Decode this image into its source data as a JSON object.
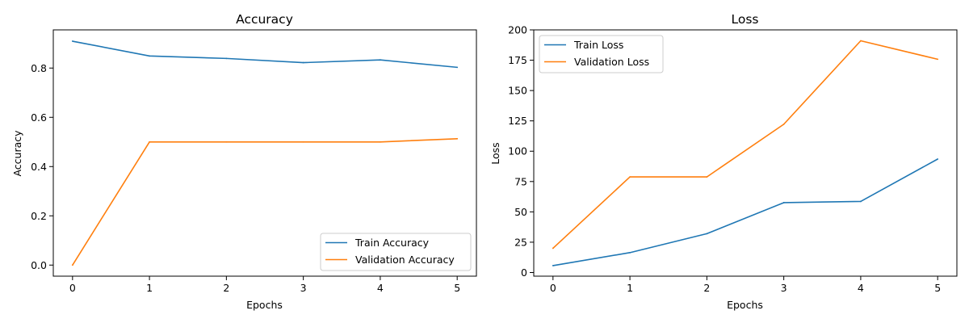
{
  "colors": {
    "series_a": "#1f77b4",
    "series_b": "#ff7f0e"
  },
  "chart_data": [
    {
      "type": "line",
      "title": "Accuracy",
      "xlabel": "Epochs",
      "ylabel": "Accuracy",
      "x": [
        0,
        1,
        2,
        3,
        4,
        5
      ],
      "xlim": [
        -0.25,
        5.25
      ],
      "ylim": [
        -0.045,
        0.955
      ],
      "xticks": [
        0,
        1,
        2,
        3,
        4,
        5
      ],
      "xtick_labels": [
        "0",
        "1",
        "2",
        "3",
        "4",
        "5"
      ],
      "yticks": [
        0.0,
        0.2,
        0.4,
        0.6,
        0.8
      ],
      "ytick_labels": [
        "0.0",
        "0.2",
        "0.4",
        "0.6",
        "0.8"
      ],
      "grid": false,
      "legend": "lower-right",
      "series": [
        {
          "name": "Train Accuracy",
          "values": [
            0.909,
            0.849,
            0.839,
            0.822,
            0.833,
            0.803
          ]
        },
        {
          "name": "Validation Accuracy",
          "values": [
            0.0,
            0.5,
            0.5,
            0.5,
            0.5,
            0.513
          ]
        }
      ]
    },
    {
      "type": "line",
      "title": "Loss",
      "xlabel": "Epochs",
      "ylabel": "Loss",
      "x": [
        0,
        1,
        2,
        3,
        4,
        5
      ],
      "xlim": [
        -0.25,
        5.25
      ],
      "ylim": [
        -3,
        200
      ],
      "xticks": [
        0,
        1,
        2,
        3,
        4,
        5
      ],
      "xtick_labels": [
        "0",
        "1",
        "2",
        "3",
        "4",
        "5"
      ],
      "yticks": [
        0,
        25,
        50,
        75,
        100,
        125,
        150,
        175,
        200
      ],
      "ytick_labels": [
        "0",
        "25",
        "50",
        "75",
        "100",
        "125",
        "150",
        "175",
        "200"
      ],
      "grid": false,
      "legend": "upper-left",
      "series": [
        {
          "name": "Train Loss",
          "values": [
            5.7,
            16.4,
            32.0,
            57.6,
            58.6,
            93.5
          ]
        },
        {
          "name": "Validation Loss",
          "values": [
            20.0,
            78.8,
            78.8,
            122.2,
            191.0,
            175.8
          ]
        }
      ]
    }
  ]
}
